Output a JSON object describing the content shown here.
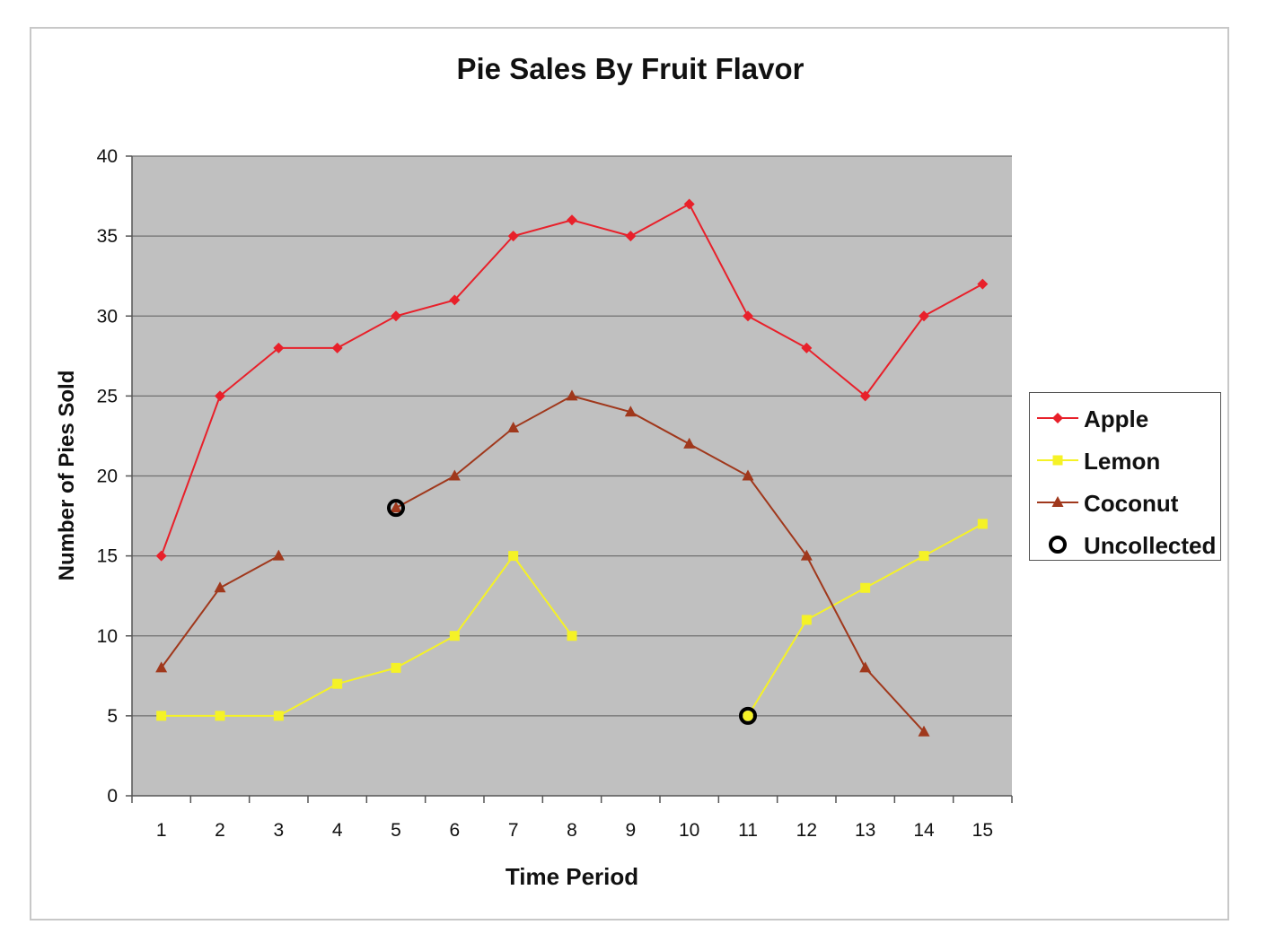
{
  "chart_data": {
    "type": "line",
    "title": "Pie Sales By Fruit Flavor",
    "xlabel": "Time Period",
    "ylabel": "Number of Pies Sold",
    "categories": [
      1,
      2,
      3,
      4,
      5,
      6,
      7,
      8,
      9,
      10,
      11,
      12,
      13,
      14,
      15
    ],
    "ylim": [
      0,
      40
    ],
    "yticks": [
      0,
      5,
      10,
      15,
      20,
      25,
      30,
      35,
      40
    ],
    "grid": true,
    "legend_position": "right",
    "series": [
      {
        "name": "Apple",
        "color": "#e8202a",
        "marker": "diamond",
        "values": [
          15,
          25,
          28,
          28,
          30,
          31,
          35,
          36,
          35,
          37,
          30,
          28,
          25,
          30,
          32
        ]
      },
      {
        "name": "Lemon",
        "color": "#f5f226",
        "marker": "square",
        "values": [
          5,
          5,
          5,
          7,
          8,
          10,
          15,
          10,
          null,
          null,
          5,
          11,
          13,
          15,
          17
        ]
      },
      {
        "name": "Coconut",
        "color": "#a0381c",
        "marker": "triangle",
        "values": [
          8,
          13,
          15,
          null,
          18,
          20,
          23,
          25,
          24,
          22,
          20,
          15,
          8,
          4,
          null
        ]
      },
      {
        "name": "Uncollected",
        "color": "#000000",
        "marker": "circle",
        "line": false,
        "points": [
          {
            "x": 5,
            "y": 18
          },
          {
            "x": 11,
            "y": 5
          }
        ]
      }
    ]
  }
}
